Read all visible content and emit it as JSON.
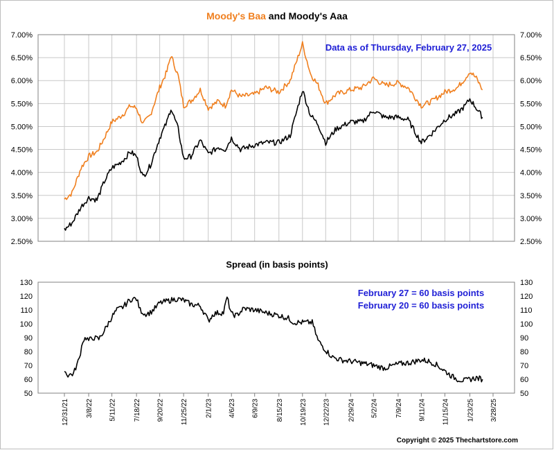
{
  "title_parts": {
    "baa": "Moody's Baa",
    "and": " and ",
    "aaa": "Moody's Aaa"
  },
  "colors": {
    "baa": "#f07f1e",
    "aaa": "#000000",
    "annotation": "#1f1fd6",
    "grid": "#c8c8c8"
  },
  "top_annotation": "Data as of Thursday, February 27, 2025",
  "spread_title": "Spread (in basis points)",
  "spread_annotations": [
    "February 27 = 60 basis points",
    "February 20 = 60 basis points"
  ],
  "copyright": "Copyright © 2025 Thechartstore.com",
  "chart_data": [
    {
      "type": "line",
      "y_ticks": [
        "2.50%",
        "3.00%",
        "3.50%",
        "4.00%",
        "4.50%",
        "5.00%",
        "5.50%",
        "6.00%",
        "6.50%",
        "7.00%"
      ],
      "ylim": [
        2.5,
        7.0
      ],
      "grid": true,
      "series": [
        {
          "name": "Moody's Baa",
          "color": "#f07f1e",
          "x": [
            "2021-12-31",
            "2022-01-21",
            "2022-02-15",
            "2022-03-08",
            "2022-03-31",
            "2022-04-20",
            "2022-05-11",
            "2022-06-01",
            "2022-06-15",
            "2022-07-01",
            "2022-07-18",
            "2022-08-05",
            "2022-08-25",
            "2022-09-20",
            "2022-10-10",
            "2022-10-21",
            "2022-11-10",
            "2022-11-25",
            "2022-12-15",
            "2023-01-10",
            "2023-02-01",
            "2023-03-01",
            "2023-03-20",
            "2023-04-06",
            "2023-05-01",
            "2023-06-09",
            "2023-07-10",
            "2023-08-15",
            "2023-09-15",
            "2023-10-19",
            "2023-11-10",
            "2023-12-01",
            "2023-12-22",
            "2024-01-20",
            "2024-02-29",
            "2024-04-01",
            "2024-05-02",
            "2024-06-01",
            "2024-07-09",
            "2024-08-05",
            "2024-09-11",
            "2024-10-10",
            "2024-11-15",
            "2024-12-20",
            "2025-01-10",
            "2025-01-23",
            "2025-02-10",
            "2025-02-27"
          ],
          "y": [
            3.42,
            3.55,
            4.1,
            4.35,
            4.45,
            4.75,
            5.1,
            5.2,
            5.3,
            5.45,
            5.4,
            5.05,
            5.25,
            5.85,
            6.2,
            6.55,
            6.1,
            5.45,
            5.55,
            5.8,
            5.4,
            5.55,
            5.45,
            5.8,
            5.65,
            5.7,
            5.85,
            5.75,
            6.0,
            6.8,
            6.15,
            5.9,
            5.5,
            5.7,
            5.8,
            5.85,
            6.05,
            5.9,
            5.95,
            5.85,
            5.45,
            5.55,
            5.75,
            5.85,
            6.05,
            6.2,
            6.05,
            5.8
          ]
        },
        {
          "name": "Moody's Aaa",
          "color": "#000000",
          "x": [
            "2021-12-31",
            "2022-01-21",
            "2022-02-15",
            "2022-03-08",
            "2022-03-31",
            "2022-04-20",
            "2022-05-11",
            "2022-06-01",
            "2022-06-15",
            "2022-07-01",
            "2022-07-18",
            "2022-08-05",
            "2022-08-25",
            "2022-09-20",
            "2022-10-10",
            "2022-10-21",
            "2022-11-10",
            "2022-11-25",
            "2022-12-15",
            "2023-01-10",
            "2023-02-01",
            "2023-03-01",
            "2023-03-20",
            "2023-04-06",
            "2023-05-01",
            "2023-06-09",
            "2023-07-10",
            "2023-08-15",
            "2023-09-15",
            "2023-10-19",
            "2023-11-10",
            "2023-12-01",
            "2023-12-22",
            "2024-01-20",
            "2024-02-29",
            "2024-04-01",
            "2024-05-02",
            "2024-06-01",
            "2024-07-09",
            "2024-08-05",
            "2024-09-11",
            "2024-10-10",
            "2024-11-15",
            "2024-12-20",
            "2025-01-10",
            "2025-01-23",
            "2025-02-10",
            "2025-02-27"
          ],
          "y": [
            2.75,
            2.9,
            3.25,
            3.45,
            3.4,
            3.8,
            4.1,
            4.2,
            4.3,
            4.45,
            4.35,
            3.9,
            4.15,
            4.75,
            5.1,
            5.4,
            4.95,
            4.3,
            4.35,
            4.7,
            4.4,
            4.55,
            4.5,
            4.75,
            4.5,
            4.6,
            4.65,
            4.65,
            4.8,
            5.8,
            5.25,
            5.05,
            4.65,
            4.95,
            5.1,
            5.1,
            5.35,
            5.2,
            5.2,
            5.15,
            4.65,
            4.85,
            5.15,
            5.3,
            5.45,
            5.6,
            5.4,
            5.2
          ]
        }
      ]
    },
    {
      "type": "line",
      "y_ticks": [
        "50",
        "60",
        "70",
        "80",
        "90",
        "100",
        "110",
        "120",
        "130"
      ],
      "ylim": [
        50,
        130
      ],
      "grid": false,
      "x_ticks": [
        "12/31/21",
        "3/8/22",
        "5/11/22",
        "7/18/22",
        "9/20/22",
        "11/25/22",
        "2/1/23",
        "4/6/23",
        "6/9/23",
        "8/15/23",
        "10/19/23",
        "12/22/23",
        "2/29/24",
        "5/2/24",
        "7/9/24",
        "9/11/24",
        "11/15/24",
        "1/23/25",
        "3/28/25"
      ],
      "series": [
        {
          "name": "Spread",
          "color": "#000000",
          "x": [
            "2021-12-31",
            "2022-01-10",
            "2022-01-25",
            "2022-02-10",
            "2022-02-20",
            "2022-03-01",
            "2022-03-08",
            "2022-03-20",
            "2022-04-05",
            "2022-04-20",
            "2022-05-11",
            "2022-05-25",
            "2022-06-10",
            "2022-06-25",
            "2022-07-05",
            "2022-07-18",
            "2022-07-28",
            "2022-08-10",
            "2022-08-25",
            "2022-09-10",
            "2022-09-20",
            "2022-10-05",
            "2022-10-20",
            "2022-11-05",
            "2022-11-25",
            "2022-12-15",
            "2023-01-10",
            "2023-01-25",
            "2023-02-01",
            "2023-02-15",
            "2023-03-01",
            "2023-03-15",
            "2023-03-25",
            "2023-04-06",
            "2023-04-20",
            "2023-05-10",
            "2023-06-09",
            "2023-07-10",
            "2023-08-15",
            "2023-09-10",
            "2023-09-25",
            "2023-10-19",
            "2023-11-15",
            "2023-12-01",
            "2023-12-22",
            "2024-01-10",
            "2024-02-01",
            "2024-02-29",
            "2024-03-25",
            "2024-05-02",
            "2024-06-01",
            "2024-07-09",
            "2024-08-10",
            "2024-09-11",
            "2024-10-01",
            "2024-10-20",
            "2024-11-15",
            "2024-12-05",
            "2024-12-20",
            "2025-01-10",
            "2025-01-23",
            "2025-02-10",
            "2025-02-27"
          ],
          "y": [
            66,
            63,
            64,
            75,
            88,
            90,
            88,
            90,
            89,
            95,
            105,
            110,
            112,
            116,
            118,
            118,
            110,
            107,
            108,
            112,
            115,
            116,
            117,
            118,
            117,
            114,
            113,
            106,
            102,
            107,
            108,
            108,
            119,
            107,
            106,
            111,
            110,
            108,
            106,
            104,
            101,
            101,
            101,
            88,
            81,
            76,
            74,
            73,
            72,
            70,
            68,
            71,
            72,
            74,
            73,
            71,
            66,
            62,
            60,
            59,
            60,
            61,
            60
          ]
        }
      ]
    }
  ]
}
